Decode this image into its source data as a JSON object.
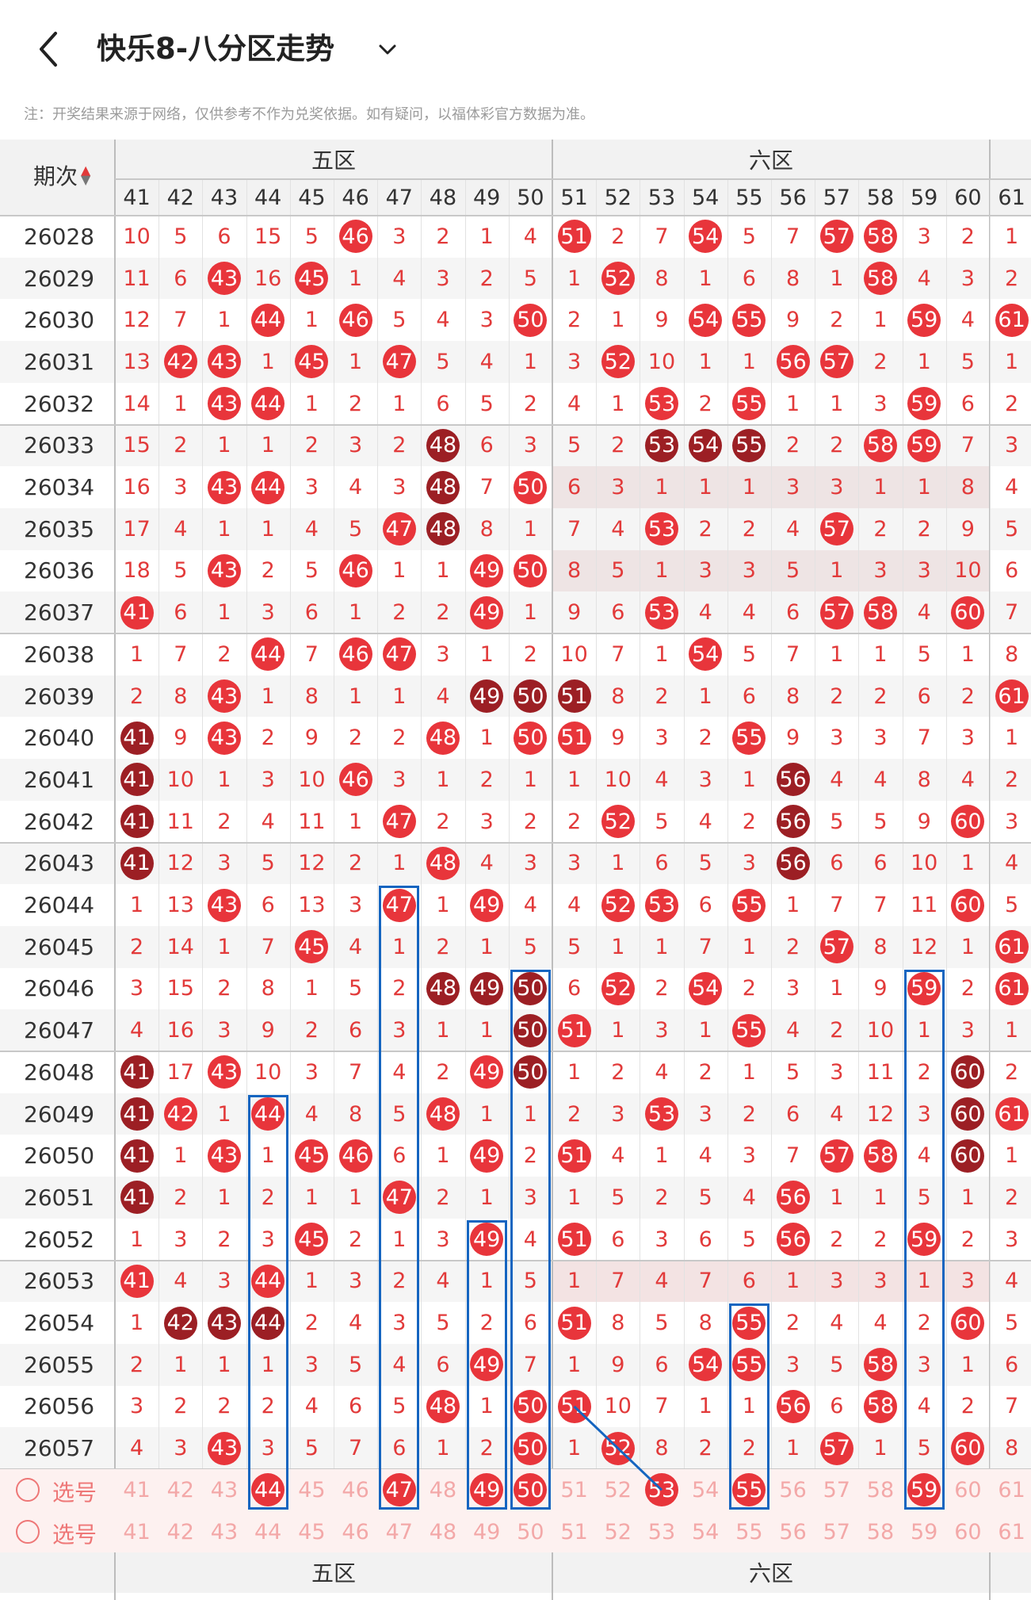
{
  "header": {
    "title": "快乐8-八分区走势",
    "notice": "注：开奖结果来源于网络，仅供参考不作为兑奖依据。如有疑问，以福体彩官方数据为准。"
  },
  "table": {
    "period_header": "期次",
    "zones": [
      "五区",
      "六区"
    ],
    "columns": [
      41,
      42,
      43,
      44,
      45,
      46,
      47,
      48,
      49,
      50,
      51,
      52,
      53,
      54,
      55,
      56,
      57,
      58,
      59,
      60,
      61
    ],
    "rows": [
      {
        "period": "26028",
        "cells": [
          10,
          5,
          6,
          15,
          5,
          "46",
          3,
          2,
          1,
          4,
          "51",
          2,
          7,
          "54",
          5,
          7,
          "57",
          "58",
          3,
          2,
          1
        ]
      },
      {
        "period": "26029",
        "cells": [
          11,
          6,
          "43",
          16,
          "45",
          1,
          4,
          3,
          2,
          5,
          1,
          "52",
          8,
          1,
          6,
          8,
          1,
          "58",
          4,
          3,
          2
        ]
      },
      {
        "period": "26030",
        "cells": [
          12,
          7,
          1,
          "44",
          1,
          "46",
          5,
          4,
          3,
          "50",
          2,
          1,
          9,
          "54",
          "55",
          9,
          2,
          1,
          "59",
          4,
          "61"
        ]
      },
      {
        "period": "26031",
        "cells": [
          13,
          "42",
          "43",
          1,
          "45",
          1,
          "47",
          5,
          4,
          1,
          3,
          "52",
          10,
          1,
          1,
          "56",
          "57",
          2,
          1,
          5,
          1
        ]
      },
      {
        "period": "26032",
        "cells": [
          14,
          1,
          "43",
          "44",
          1,
          2,
          1,
          6,
          5,
          2,
          4,
          1,
          "53",
          2,
          "55",
          1,
          1,
          3,
          "59",
          6,
          2
        ]
      },
      {
        "period": "26033",
        "cells": [
          15,
          2,
          1,
          1,
          2,
          3,
          2,
          "48!",
          6,
          3,
          5,
          2,
          "53!",
          "54!",
          "55!",
          2,
          2,
          "58",
          "59",
          7,
          3
        ]
      },
      {
        "period": "26034",
        "cells": [
          16,
          3,
          "43",
          "44",
          3,
          4,
          3,
          "48!",
          7,
          "50",
          6,
          3,
          1,
          1,
          1,
          3,
          3,
          1,
          1,
          8,
          4
        ]
      },
      {
        "period": "26035",
        "cells": [
          17,
          4,
          1,
          1,
          4,
          5,
          "47",
          "48!",
          8,
          1,
          7,
          4,
          "53",
          2,
          2,
          4,
          "57",
          2,
          2,
          9,
          5
        ]
      },
      {
        "period": "26036",
        "cells": [
          18,
          5,
          "43",
          2,
          5,
          "46",
          1,
          1,
          "49",
          "50",
          8,
          5,
          1,
          3,
          3,
          5,
          1,
          3,
          3,
          10,
          6
        ]
      },
      {
        "period": "26037",
        "cells": [
          "41",
          6,
          1,
          3,
          6,
          1,
          2,
          2,
          "49",
          1,
          9,
          6,
          "53",
          4,
          4,
          6,
          "57",
          "58",
          4,
          "60",
          7
        ]
      },
      {
        "period": "26038",
        "cells": [
          1,
          7,
          2,
          "44",
          7,
          "46",
          "47",
          3,
          1,
          2,
          10,
          7,
          1,
          "54",
          5,
          7,
          1,
          1,
          5,
          1,
          8
        ]
      },
      {
        "period": "26039",
        "cells": [
          2,
          8,
          "43",
          1,
          8,
          1,
          1,
          4,
          "49!",
          "50!",
          "51!",
          8,
          2,
          1,
          6,
          8,
          2,
          2,
          6,
          2,
          "61"
        ]
      },
      {
        "period": "26040",
        "cells": [
          "41!",
          9,
          "43",
          2,
          9,
          2,
          2,
          "48",
          1,
          "50",
          "51",
          9,
          3,
          2,
          "55",
          9,
          3,
          3,
          7,
          3,
          1
        ]
      },
      {
        "period": "26041",
        "cells": [
          "41!",
          10,
          1,
          3,
          10,
          "46",
          3,
          1,
          2,
          1,
          1,
          10,
          4,
          3,
          1,
          "56!",
          4,
          4,
          8,
          4,
          2
        ]
      },
      {
        "period": "26042",
        "cells": [
          "41!",
          11,
          2,
          4,
          11,
          1,
          "47",
          2,
          3,
          2,
          2,
          "52",
          5,
          4,
          2,
          "56!",
          5,
          5,
          9,
          "60",
          3
        ]
      },
      {
        "period": "26043",
        "cells": [
          "41!",
          12,
          3,
          5,
          12,
          2,
          1,
          "48",
          4,
          3,
          3,
          1,
          6,
          5,
          3,
          "56!",
          6,
          6,
          10,
          1,
          4
        ]
      },
      {
        "period": "26044",
        "cells": [
          1,
          13,
          "43",
          6,
          13,
          3,
          "47",
          1,
          "49",
          4,
          4,
          "52",
          "53",
          6,
          "55",
          1,
          7,
          7,
          11,
          "60",
          5
        ]
      },
      {
        "period": "26045",
        "cells": [
          2,
          14,
          1,
          7,
          "45",
          4,
          1,
          2,
          1,
          5,
          5,
          1,
          1,
          7,
          1,
          2,
          "57",
          8,
          12,
          1,
          "61"
        ]
      },
      {
        "period": "26046",
        "cells": [
          3,
          15,
          2,
          8,
          1,
          5,
          2,
          "48!",
          "49!",
          "50!",
          6,
          "52",
          2,
          "54",
          2,
          3,
          1,
          9,
          "59",
          2,
          "61"
        ]
      },
      {
        "period": "26047",
        "cells": [
          4,
          16,
          3,
          9,
          2,
          6,
          3,
          1,
          1,
          "50!",
          "51",
          1,
          3,
          1,
          "55",
          4,
          2,
          10,
          1,
          3,
          1
        ]
      },
      {
        "period": "26048",
        "cells": [
          "41!",
          17,
          "43",
          10,
          3,
          7,
          4,
          2,
          "49",
          "50!",
          1,
          2,
          4,
          2,
          1,
          5,
          3,
          11,
          2,
          "60!",
          2
        ]
      },
      {
        "period": "26049",
        "cells": [
          "41!",
          "42",
          1,
          "44",
          4,
          8,
          5,
          "48",
          1,
          1,
          2,
          3,
          "53",
          3,
          2,
          6,
          4,
          12,
          3,
          "60!",
          "61"
        ]
      },
      {
        "period": "26050",
        "cells": [
          "41!",
          1,
          "43",
          1,
          "45",
          "46",
          6,
          1,
          "49",
          2,
          "51",
          4,
          1,
          4,
          3,
          7,
          "57",
          "58",
          4,
          "60!",
          1
        ]
      },
      {
        "period": "26051",
        "cells": [
          "41!",
          2,
          1,
          2,
          1,
          1,
          "47",
          2,
          1,
          3,
          1,
          5,
          2,
          5,
          4,
          "56",
          1,
          1,
          5,
          1,
          2
        ]
      },
      {
        "period": "26052",
        "cells": [
          1,
          3,
          2,
          3,
          "45",
          2,
          1,
          3,
          "49",
          4,
          "51",
          6,
          3,
          6,
          5,
          "56",
          2,
          2,
          "59",
          2,
          3
        ]
      },
      {
        "period": "26053",
        "cells": [
          "41",
          4,
          3,
          "44",
          1,
          3,
          2,
          4,
          1,
          5,
          1,
          7,
          4,
          7,
          6,
          1,
          3,
          3,
          1,
          3,
          4
        ]
      },
      {
        "period": "26054",
        "cells": [
          1,
          "42!",
          "43!",
          "44!",
          2,
          4,
          3,
          5,
          2,
          6,
          "51",
          8,
          5,
          8,
          "55",
          2,
          4,
          4,
          2,
          "60",
          5
        ]
      },
      {
        "period": "26055",
        "cells": [
          2,
          1,
          1,
          1,
          3,
          5,
          4,
          6,
          "49",
          7,
          1,
          9,
          6,
          "54",
          "55",
          3,
          5,
          "58",
          3,
          1,
          6
        ]
      },
      {
        "period": "26056",
        "cells": [
          3,
          2,
          2,
          2,
          4,
          6,
          5,
          "48",
          1,
          "50",
          "51",
          10,
          7,
          1,
          1,
          "56",
          6,
          "58",
          4,
          2,
          7
        ]
      },
      {
        "period": "26057",
        "cells": [
          4,
          3,
          "43",
          3,
          5,
          7,
          6,
          1,
          2,
          "50",
          1,
          "52",
          8,
          2,
          2,
          1,
          "57",
          1,
          5,
          "60",
          8
        ]
      }
    ],
    "pick_label": "选号",
    "pick_row1_selected": [
      44,
      47,
      49,
      50,
      53,
      55,
      59
    ]
  },
  "colors": {
    "ball_red": "#e8353b",
    "ball_dark": "#9c1f24",
    "number_text": "#e23a3a",
    "highlight_box": "#1565c0",
    "header_bg": "#f2f2f2"
  }
}
